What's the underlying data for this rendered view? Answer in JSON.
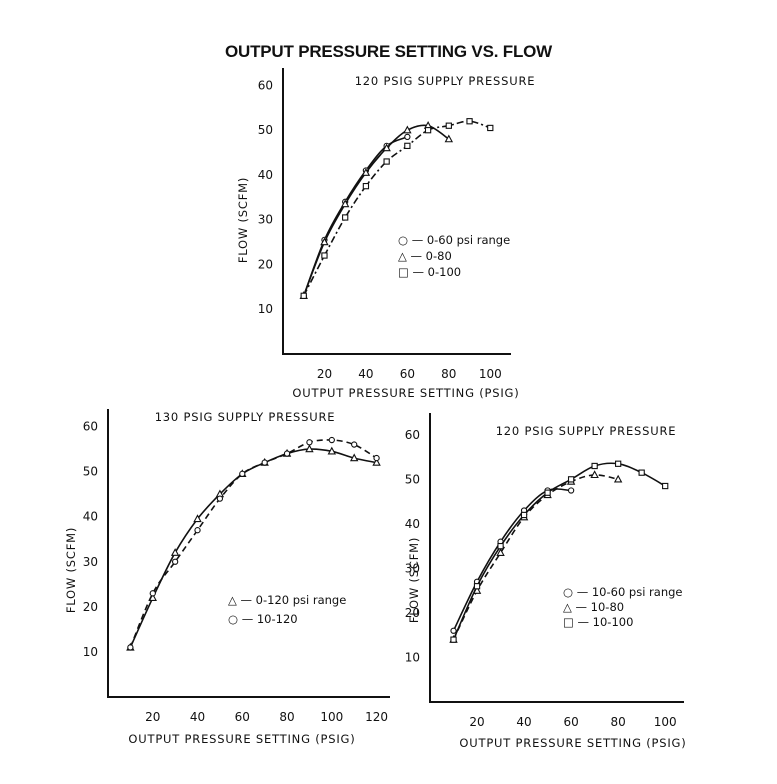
{
  "title": "OUTPUT PRESSURE SETTING VS. FLOW",
  "chart_data": [
    {
      "type": "line",
      "subtitle": "120 PSIG SUPPLY PRESSURE",
      "xlabel": "OUTPUT PRESSURE SETTING (PSIG)",
      "ylabel": "FLOW (SCFM)",
      "xlim": [
        0,
        110
      ],
      "ylim": [
        0,
        63
      ],
      "xticks": [
        20,
        40,
        60,
        80,
        100
      ],
      "yticks": [
        10,
        20,
        30,
        40,
        50,
        60
      ],
      "legend": {
        "position": "right-center",
        "entries": [
          "○ — 0-60 psi range",
          "△ — 0-80",
          "□ — 0-100"
        ]
      },
      "series": [
        {
          "name": "0-60 psi range",
          "marker": "circle",
          "dash": "solid",
          "x": [
            10,
            20,
            30,
            40,
            50,
            60
          ],
          "y": [
            13,
            25.5,
            34,
            41,
            46.5,
            48.5
          ]
        },
        {
          "name": "0-80",
          "marker": "triangle",
          "dash": "solid",
          "x": [
            10,
            20,
            30,
            40,
            50,
            60,
            70,
            80
          ],
          "y": [
            13,
            25,
            33.5,
            40.5,
            46,
            50,
            51,
            48
          ]
        },
        {
          "name": "0-100",
          "marker": "square",
          "dash": "dashdot",
          "x": [
            10,
            20,
            30,
            40,
            50,
            60,
            70,
            80,
            90,
            100
          ],
          "y": [
            13,
            22,
            30.5,
            37.5,
            43,
            46.5,
            50,
            51,
            52,
            50.5
          ]
        }
      ]
    },
    {
      "type": "line",
      "subtitle": "130 PSIG SUPPLY PRESSURE",
      "xlabel": "OUTPUT PRESSURE SETTING (PSIG)",
      "ylabel": "FLOW (SCFM)",
      "xlim": [
        0,
        126
      ],
      "ylim": [
        0,
        63
      ],
      "xticks": [
        20,
        40,
        60,
        80,
        100,
        120
      ],
      "yticks": [
        10,
        20,
        30,
        40,
        50,
        60
      ],
      "legend": {
        "position": "right-center",
        "entries": [
          "△ — 0-120 psi range",
          "○ — 10-120"
        ]
      },
      "series": [
        {
          "name": "0-120 psi range",
          "marker": "triangle",
          "dash": "solid",
          "x": [
            10,
            20,
            30,
            40,
            50,
            60,
            70,
            80,
            90,
            100,
            110,
            120
          ],
          "y": [
            11,
            22,
            32,
            39.5,
            45,
            49.5,
            52,
            54,
            55,
            54.5,
            53,
            52
          ]
        },
        {
          "name": "10-120",
          "marker": "circle",
          "dash": "dashed",
          "x": [
            10,
            20,
            30,
            40,
            50,
            60,
            70,
            80,
            90,
            100,
            110,
            120
          ],
          "y": [
            11,
            23,
            30,
            37,
            44,
            49.5,
            52,
            54,
            56.5,
            57,
            56,
            53
          ]
        }
      ]
    },
    {
      "type": "line",
      "subtitle": "120 PSIG SUPPLY PRESSURE",
      "xlabel": "OUTPUT PRESSURE SETTING (PSIG)",
      "ylabel": "FLOW (SCFM)",
      "xlim": [
        0,
        108
      ],
      "ylim": [
        0,
        64
      ],
      "xticks": [
        20,
        40,
        60,
        80,
        100
      ],
      "yticks": [
        10,
        20,
        30,
        40,
        50,
        60
      ],
      "legend": {
        "position": "lower-right",
        "entries": [
          "○ — 10-60 psi range",
          "△ — 10-80",
          "□ — 10-100"
        ]
      },
      "series": [
        {
          "name": "10-60 psi range",
          "marker": "circle",
          "dash": "solid",
          "x": [
            10,
            20,
            30,
            40,
            50,
            60
          ],
          "y": [
            16,
            27,
            36,
            43,
            47.5,
            47.5
          ]
        },
        {
          "name": "10-80",
          "marker": "triangle",
          "dash": "dashed",
          "x": [
            10,
            20,
            30,
            40,
            50,
            60,
            70,
            80
          ],
          "y": [
            14,
            25,
            33.5,
            41.5,
            46.5,
            49.5,
            51,
            50
          ]
        },
        {
          "name": "10-100",
          "marker": "square",
          "dash": "solid",
          "x": [
            10,
            20,
            30,
            40,
            50,
            60,
            70,
            80,
            90,
            100
          ],
          "y": [
            14,
            26,
            35,
            42,
            47,
            50,
            53,
            53.5,
            51.5,
            48.5
          ]
        }
      ]
    }
  ]
}
